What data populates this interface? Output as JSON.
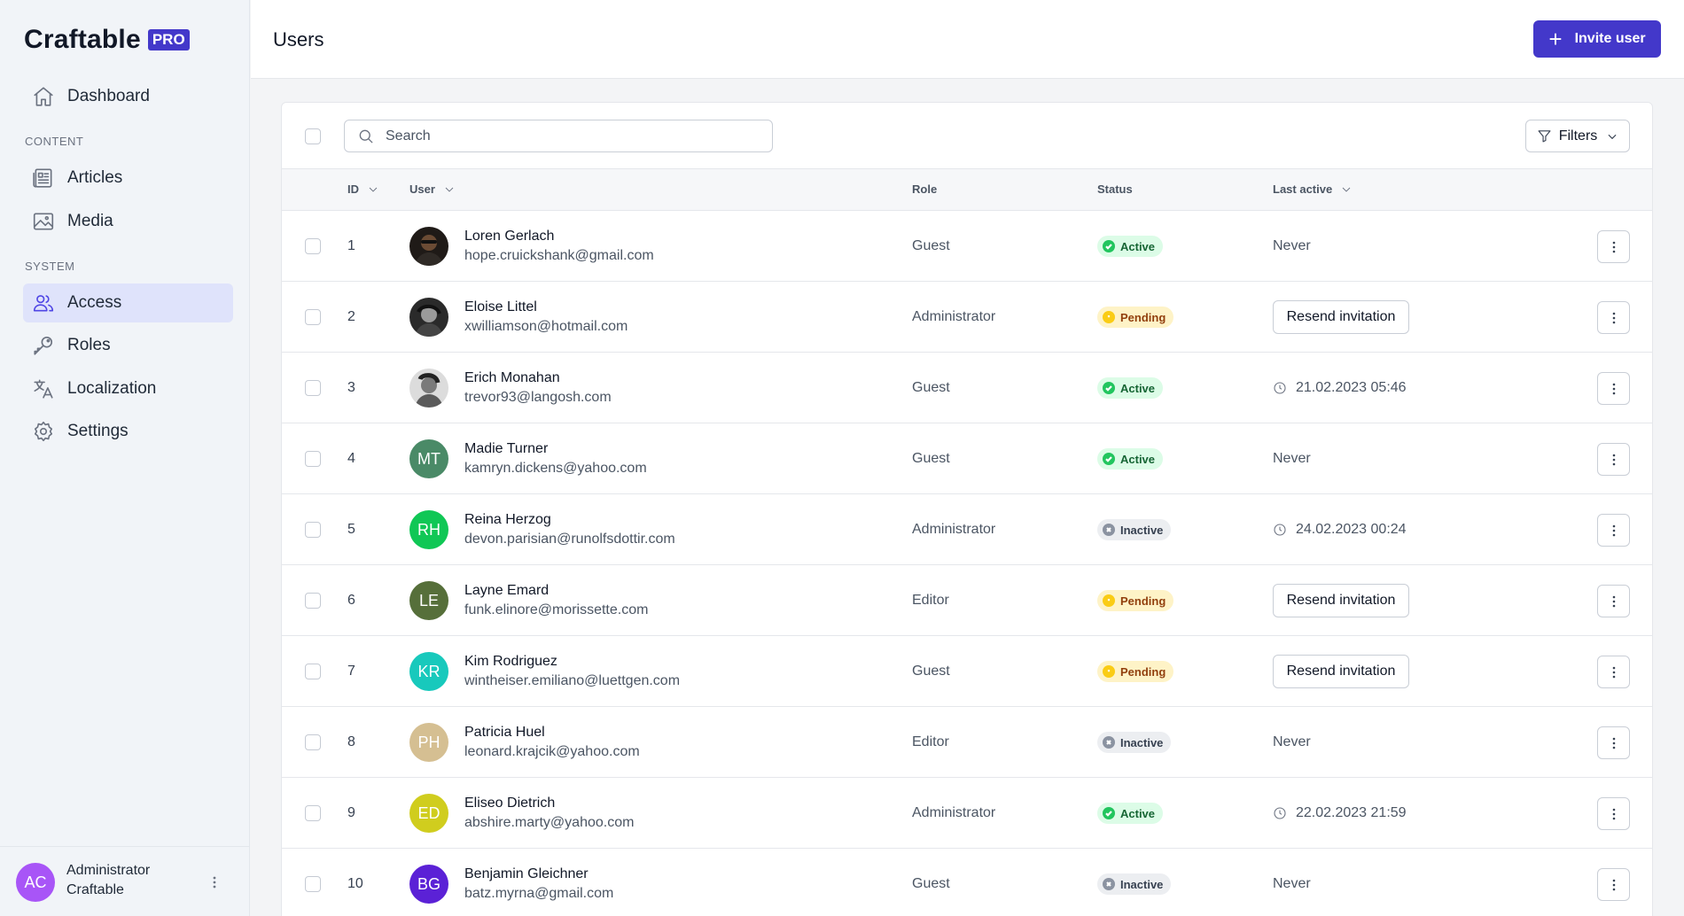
{
  "brand": {
    "name": "Craftable",
    "badge": "PRO"
  },
  "sidebar": {
    "dashboard": "Dashboard",
    "section_content": "CONTENT",
    "articles": "Articles",
    "media": "Media",
    "section_system": "SYSTEM",
    "access": "Access",
    "roles": "Roles",
    "localization": "Localization",
    "settings": "Settings",
    "active_item": "Access"
  },
  "account": {
    "initials": "AC",
    "name": "Administrator",
    "org": "Craftable",
    "avatar_color": "#a855f7"
  },
  "header": {
    "title": "Users",
    "invite_label": "Invite user"
  },
  "toolbar": {
    "search_placeholder": "Search",
    "filters_label": "Filters"
  },
  "table": {
    "columns": {
      "id": "ID",
      "user": "User",
      "role": "Role",
      "status": "Status",
      "last_active": "Last active"
    },
    "rows": [
      {
        "id": "1",
        "name": "Loren Gerlach",
        "email": "hope.cruickshank@gmail.com",
        "role": "Guest",
        "status": "Active",
        "status_kind": "active",
        "last_active": "Never",
        "avatar": {
          "type": "photo",
          "color": "#2b2b2b"
        }
      },
      {
        "id": "2",
        "name": "Eloise Littel",
        "email": "xwilliamson@hotmail.com",
        "role": "Administrator",
        "status": "Pending",
        "status_kind": "pending",
        "last_active": "Resend invitation",
        "last_kind": "resend",
        "avatar": {
          "type": "photo",
          "color": "#3a3a3a"
        }
      },
      {
        "id": "3",
        "name": "Erich Monahan",
        "email": "trevor93@langosh.com",
        "role": "Guest",
        "status": "Active",
        "status_kind": "active",
        "last_active": "21.02.2023 05:46",
        "last_kind": "time",
        "avatar": {
          "type": "photo",
          "color": "#8a8a8a"
        }
      },
      {
        "id": "4",
        "name": "Madie Turner",
        "email": "kamryn.dickens@yahoo.com",
        "role": "Guest",
        "status": "Active",
        "status_kind": "active",
        "last_active": "Never",
        "avatar": {
          "type": "initials",
          "initials": "MT",
          "color": "#4a8a67"
        }
      },
      {
        "id": "5",
        "name": "Reina Herzog",
        "email": "devon.parisian@runolfsdottir.com",
        "role": "Administrator",
        "status": "Inactive",
        "status_kind": "inactive",
        "last_active": "24.02.2023 00:24",
        "last_kind": "time",
        "avatar": {
          "type": "initials",
          "initials": "RH",
          "color": "#10c755"
        }
      },
      {
        "id": "6",
        "name": "Layne Emard",
        "email": "funk.elinore@morissette.com",
        "role": "Editor",
        "status": "Pending",
        "status_kind": "pending",
        "last_active": "Resend invitation",
        "last_kind": "resend",
        "avatar": {
          "type": "initials",
          "initials": "LE",
          "color": "#566f3a"
        }
      },
      {
        "id": "7",
        "name": "Kim Rodriguez",
        "email": "wintheiser.emiliano@luettgen.com",
        "role": "Guest",
        "status": "Pending",
        "status_kind": "pending",
        "last_active": "Resend invitation",
        "last_kind": "resend",
        "avatar": {
          "type": "initials",
          "initials": "KR",
          "color": "#18c9bc"
        }
      },
      {
        "id": "8",
        "name": "Patricia Huel",
        "email": "leonard.krajcik@yahoo.com",
        "role": "Editor",
        "status": "Inactive",
        "status_kind": "inactive",
        "last_active": "Never",
        "avatar": {
          "type": "initials",
          "initials": "PH",
          "color": "#d5bf92"
        }
      },
      {
        "id": "9",
        "name": "Eliseo Dietrich",
        "email": "abshire.marty@yahoo.com",
        "role": "Administrator",
        "status": "Active",
        "status_kind": "active",
        "last_active": "22.02.2023 21:59",
        "last_kind": "time",
        "avatar": {
          "type": "initials",
          "initials": "ED",
          "color": "#d0cd1e"
        }
      },
      {
        "id": "10",
        "name": "Benjamin Gleichner",
        "email": "batz.myrna@gmail.com",
        "role": "Guest",
        "status": "Inactive",
        "status_kind": "inactive",
        "last_active": "Never",
        "avatar": {
          "type": "initials",
          "initials": "BG",
          "color": "#5b21d6"
        }
      }
    ]
  },
  "colors": {
    "accent": "#4338ca",
    "active_nav_bg": "#dfe3fb"
  }
}
